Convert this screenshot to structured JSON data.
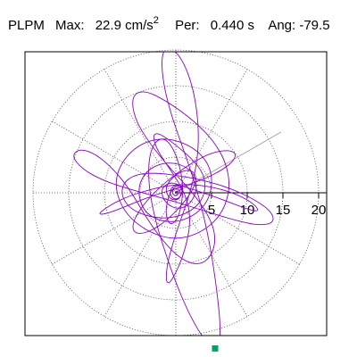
{
  "header": {
    "station": "PLPM",
    "max_label": "Max:",
    "max_value": "22.9",
    "max_unit": "cm/s",
    "max_unit_exp": "2",
    "period_label": "Per:",
    "period_value": "0.440 s",
    "angle_label": "Ang:",
    "angle_value": "-79.5"
  },
  "chart_data": {
    "type": "polar-orbit",
    "title": "",
    "radial_ticks": [
      5,
      10,
      15,
      20
    ],
    "radial_tick_labels": [
      "5",
      "10",
      "15",
      "20"
    ],
    "max_radius": 25,
    "angular_gridlines_deg": [
      0,
      30,
      60,
      90,
      120,
      150,
      180,
      210,
      240,
      270,
      300,
      330
    ],
    "grid": true,
    "highlighted_direction_deg": 30,
    "trace_color": "#8a00c8",
    "marker_color": "#00a070",
    "marker_point": [
      5.5,
      -21.8
    ],
    "trace": [
      [
        0,
        0
      ],
      [
        1.2,
        0.8
      ],
      [
        -0.8,
        1.6
      ],
      [
        -2.2,
        0.4
      ],
      [
        -1.4,
        -1.6
      ],
      [
        0.6,
        -2.4
      ],
      [
        2.4,
        -1.2
      ],
      [
        3.1,
        1.4
      ],
      [
        1.8,
        3.6
      ],
      [
        -1.2,
        4.4
      ],
      [
        -4.1,
        3.2
      ],
      [
        -5.4,
        0.6
      ],
      [
        -4.6,
        -2.6
      ],
      [
        -1.8,
        -4.2
      ],
      [
        1.6,
        -3.8
      ],
      [
        4.2,
        -1.8
      ],
      [
        5.2,
        1.2
      ],
      [
        4.6,
        4.2
      ],
      [
        2.2,
        6.6
      ],
      [
        -1.6,
        7.8
      ],
      [
        -5.2,
        6.8
      ],
      [
        -7.8,
        4.1
      ],
      [
        -8.6,
        0.8
      ],
      [
        -7.2,
        -2.8
      ],
      [
        -4.1,
        -5.4
      ],
      [
        -0.4,
        -6.6
      ],
      [
        3.2,
        -5.8
      ],
      [
        6.2,
        -3.4
      ],
      [
        7.6,
        0.2
      ],
      [
        7.2,
        3.8
      ],
      [
        5.4,
        7.2
      ],
      [
        2.4,
        10.2
      ],
      [
        -1.2,
        12.8
      ],
      [
        -4.4,
        14.4
      ],
      [
        -6.2,
        13.6
      ],
      [
        -5.8,
        10.4
      ],
      [
        -3.6,
        6.8
      ],
      [
        -0.6,
        3.2
      ],
      [
        2.2,
        0.2
      ],
      [
        4.4,
        -2.8
      ],
      [
        5.6,
        -5.8
      ],
      [
        5.2,
        -8.6
      ],
      [
        3.4,
        -10.2
      ],
      [
        0.8,
        -9.4
      ],
      [
        -1.8,
        -6.8
      ],
      [
        -4.2,
        -3.4
      ],
      [
        -6.4,
        0.4
      ],
      [
        -8.8,
        3.4
      ],
      [
        -11.2,
        5.4
      ],
      [
        -13.4,
        6.2
      ],
      [
        -14.6,
        5.2
      ],
      [
        -13.2,
        3.4
      ],
      [
        -10.4,
        1.8
      ],
      [
        -6.8,
        0.6
      ],
      [
        -3.2,
        -0.4
      ],
      [
        0.4,
        -1.4
      ],
      [
        4.2,
        -2.6
      ],
      [
        8.1,
        -3.8
      ],
      [
        11.6,
        -4.6
      ],
      [
        13.8,
        -4.2
      ],
      [
        13.4,
        -2.6
      ],
      [
        10.8,
        -0.8
      ],
      [
        7.2,
        0.8
      ],
      [
        3.6,
        1.8
      ],
      [
        0.4,
        2.4
      ],
      [
        -2.8,
        2.8
      ],
      [
        -5.6,
        2.6
      ],
      [
        -7.4,
        1.4
      ],
      [
        -7.6,
        -0.6
      ],
      [
        -6.2,
        -2.4
      ],
      [
        -3.6,
        -3.4
      ],
      [
        -0.8,
        -3.6
      ],
      [
        1.8,
        -2.8
      ],
      [
        3.6,
        -1.2
      ],
      [
        4.2,
        0.8
      ],
      [
        3.8,
        2.8
      ],
      [
        2.4,
        4.6
      ],
      [
        0.6,
        6.2
      ],
      [
        -1.2,
        7.6
      ],
      [
        -2.6,
        8.4
      ],
      [
        -3.2,
        8.0
      ],
      [
        -2.8,
        6.4
      ],
      [
        -1.6,
        4.4
      ],
      [
        -0.2,
        2.4
      ],
      [
        1.0,
        0.4
      ],
      [
        1.8,
        -1.8
      ],
      [
        2.0,
        -4.2
      ],
      [
        1.6,
        -6.8
      ],
      [
        0.8,
        -9.4
      ],
      [
        -0.2,
        -11.6
      ],
      [
        -1.0,
        -12.8
      ],
      [
        -1.4,
        -12.2
      ],
      [
        -1.2,
        -10.0
      ],
      [
        -0.4,
        -7.0
      ],
      [
        0.6,
        -4.0
      ],
      [
        1.6,
        -1.2
      ],
      [
        2.4,
        1.6
      ],
      [
        3.0,
        4.6
      ],
      [
        3.2,
        7.8
      ],
      [
        3.0,
        11.2
      ],
      [
        2.4,
        14.6
      ],
      [
        1.4,
        17.6
      ],
      [
        0.2,
        19.6
      ],
      [
        -1.0,
        20.4
      ],
      [
        -1.8,
        19.8
      ],
      [
        -2.0,
        17.8
      ],
      [
        -1.6,
        14.6
      ],
      [
        -0.6,
        10.8
      ],
      [
        0.8,
        6.8
      ],
      [
        2.2,
        2.8
      ],
      [
        3.4,
        -1.2
      ],
      [
        4.4,
        -5.4
      ],
      [
        5.2,
        -9.8
      ],
      [
        5.8,
        -14.2
      ],
      [
        6.2,
        -18.0
      ],
      [
        6.2,
        -20.8
      ],
      [
        5.8,
        -21.8
      ],
      [
        5.5,
        -21.8
      ],
      [
        4.6,
        -21.2
      ],
      [
        3.2,
        -19.4
      ],
      [
        1.6,
        -16.4
      ],
      [
        0.0,
        -12.6
      ],
      [
        -1.4,
        -8.6
      ],
      [
        -2.6,
        -4.8
      ],
      [
        -3.4,
        -1.4
      ],
      [
        -3.8,
        1.6
      ],
      [
        -3.8,
        4.2
      ],
      [
        -3.4,
        6.2
      ],
      [
        -2.6,
        7.4
      ],
      [
        -1.6,
        7.6
      ],
      [
        -0.6,
        6.6
      ],
      [
        0.2,
        4.8
      ],
      [
        0.8,
        2.6
      ],
      [
        1.0,
        0.4
      ],
      [
        0.8,
        -1.6
      ],
      [
        0.4,
        -3.2
      ],
      [
        -0.2,
        -4.2
      ],
      [
        -0.8,
        -4.4
      ],
      [
        -1.2,
        -3.8
      ],
      [
        -1.4,
        -2.6
      ],
      [
        -1.2,
        -1.2
      ],
      [
        -0.8,
        0.0
      ],
      [
        -0.2,
        0.8
      ],
      [
        0.4,
        1.0
      ],
      [
        0.8,
        0.6
      ],
      [
        0.9,
        0.0
      ],
      [
        0.6,
        -0.6
      ],
      [
        0.1,
        -0.9
      ],
      [
        -0.4,
        -0.8
      ],
      [
        -0.7,
        -0.4
      ],
      [
        -0.8,
        0.2
      ],
      [
        -0.6,
        0.7
      ],
      [
        -0.2,
        1.0
      ],
      [
        0.4,
        1.1
      ],
      [
        1.4,
        0.8
      ],
      [
        3.2,
        0.2
      ],
      [
        5.6,
        -0.6
      ],
      [
        8.2,
        -1.6
      ],
      [
        10.4,
        -2.4
      ],
      [
        11.6,
        -2.6
      ],
      [
        11.2,
        -1.8
      ],
      [
        9.4,
        -0.6
      ],
      [
        6.8,
        0.4
      ],
      [
        4.0,
        1.0
      ],
      [
        1.4,
        1.2
      ],
      [
        -1.2,
        1.0
      ],
      [
        -3.8,
        0.4
      ],
      [
        -6.4,
        -0.4
      ],
      [
        -8.6,
        -1.4
      ],
      [
        -10.2,
        -2.4
      ],
      [
        -10.8,
        -3.0
      ],
      [
        -10.0,
        -3.0
      ],
      [
        -8.2,
        -2.4
      ],
      [
        -5.8,
        -1.4
      ],
      [
        -3.2,
        -0.4
      ],
      [
        -0.6,
        0.4
      ],
      [
        2.0,
        1.2
      ],
      [
        4.6,
        2.2
      ],
      [
        6.8,
        3.4
      ],
      [
        8.2,
        4.6
      ],
      [
        8.4,
        5.6
      ],
      [
        7.2,
        6.0
      ],
      [
        5.0,
        5.6
      ],
      [
        2.6,
        4.4
      ],
      [
        0.2,
        2.8
      ],
      [
        -2.0,
        1.0
      ],
      [
        -3.8,
        -0.8
      ],
      [
        -5.2,
        -2.6
      ],
      [
        -6.0,
        -4.2
      ],
      [
        -6.0,
        -5.4
      ],
      [
        -5.0,
        -5.8
      ],
      [
        -3.2,
        -5.2
      ],
      [
        -1.2,
        -3.8
      ],
      [
        0.6,
        -2.0
      ],
      [
        2.0,
        -0.2
      ],
      [
        2.8,
        1.4
      ],
      [
        2.8,
        2.6
      ],
      [
        2.0,
        3.2
      ],
      [
        0.8,
        3.0
      ],
      [
        -0.4,
        2.2
      ],
      [
        -1.2,
        1.2
      ],
      [
        -1.4,
        0.2
      ],
      [
        -1.0,
        -0.6
      ],
      [
        -0.4,
        -1.0
      ],
      [
        0.2,
        -1.0
      ],
      [
        0.6,
        -0.6
      ],
      [
        0.7,
        -0.1
      ],
      [
        0.5,
        0.4
      ],
      [
        0.1,
        0.6
      ],
      [
        -0.3,
        0.5
      ],
      [
        -0.5,
        0.2
      ],
      [
        -0.4,
        -0.2
      ],
      [
        -0.1,
        -0.4
      ],
      [
        0.2,
        -0.3
      ],
      [
        0.3,
        0.0
      ],
      [
        0.2,
        0.2
      ],
      [
        0,
        0.2
      ],
      [
        -0.1,
        0.1
      ],
      [
        0,
        0
      ]
    ]
  }
}
